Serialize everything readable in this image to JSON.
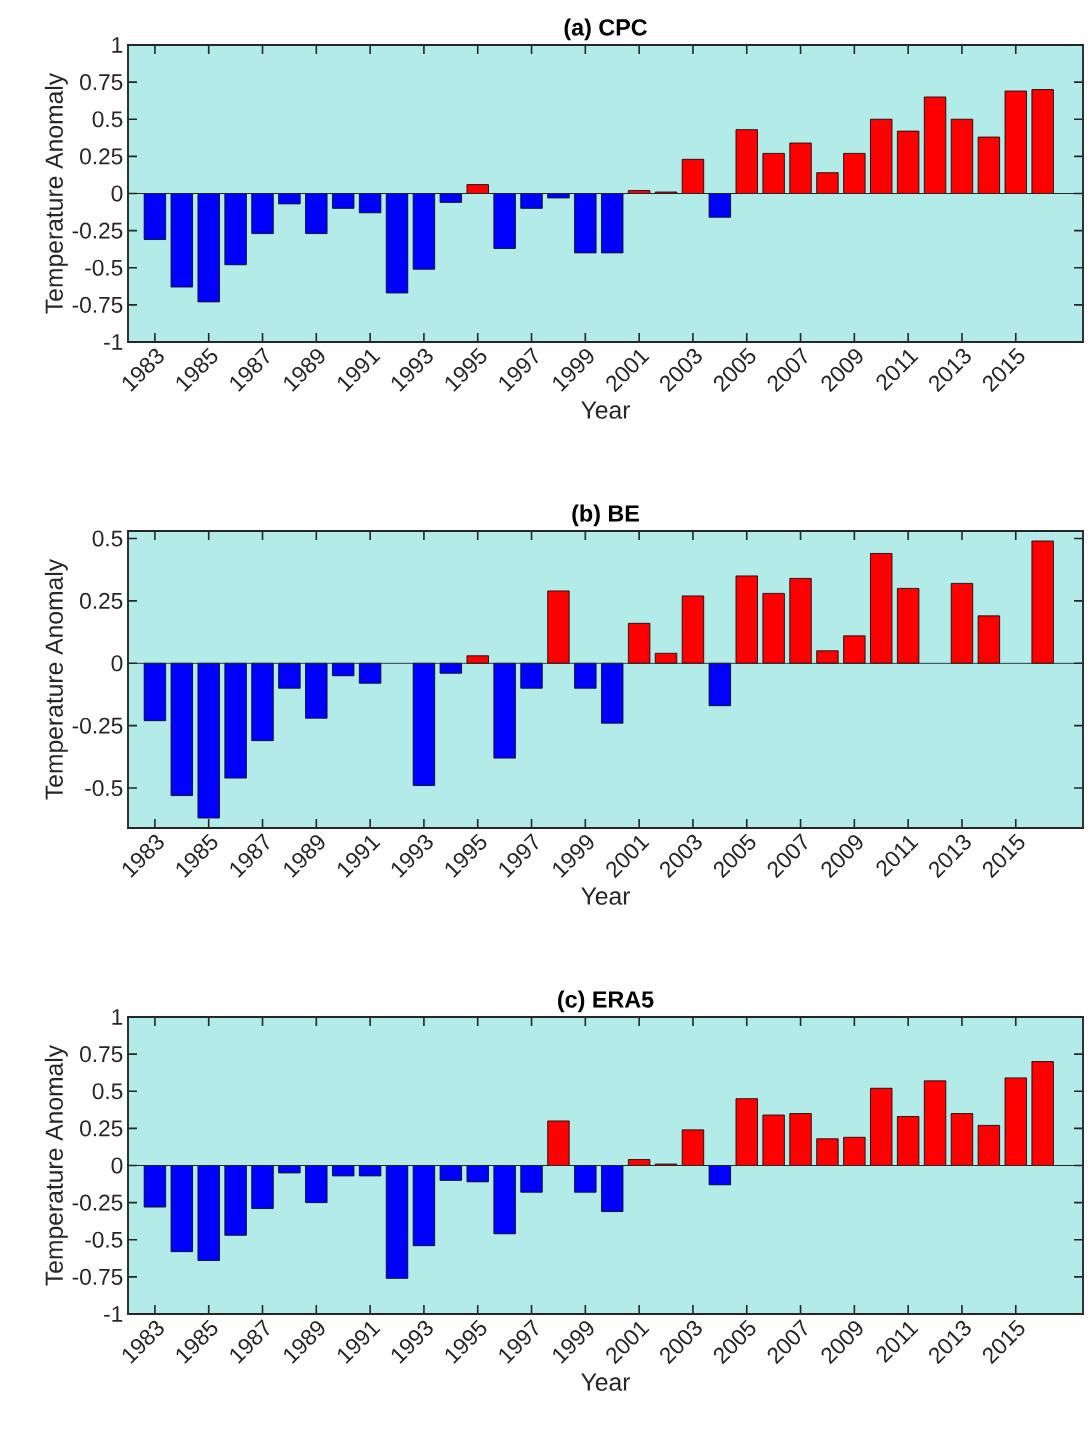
{
  "chart_data": [
    {
      "type": "bar",
      "title": "(a) CPC",
      "xlabel": "Year",
      "ylabel": "Temperature Anomaly",
      "x": [
        1983,
        1984,
        1985,
        1986,
        1987,
        1988,
        1989,
        1990,
        1991,
        1992,
        1993,
        1994,
        1995,
        1996,
        1997,
        1998,
        1999,
        2000,
        2001,
        2002,
        2003,
        2004,
        2005,
        2006,
        2007,
        2008,
        2009,
        2010,
        2011,
        2012,
        2013,
        2014,
        2015,
        2016
      ],
      "values": [
        -0.31,
        -0.63,
        -0.73,
        -0.48,
        -0.27,
        -0.07,
        -0.27,
        -0.1,
        -0.13,
        -0.67,
        -0.51,
        -0.06,
        0.06,
        -0.37,
        -0.1,
        -0.03,
        -0.4,
        -0.4,
        0.02,
        0.01,
        0.23,
        -0.16,
        0.43,
        0.27,
        0.34,
        0.14,
        0.27,
        0.5,
        0.42,
        0.65,
        0.5,
        0.38,
        0.69,
        0.7
      ],
      "colors": [
        "#0000ff",
        "#0000ff",
        "#0000ff",
        "#0000ff",
        "#0000ff",
        "#0000ff",
        "#0000ff",
        "#0000ff",
        "#0000ff",
        "#0000ff",
        "#0000ff",
        "#0000ff",
        "#ff0000",
        "#0000ff",
        "#0000ff",
        "#0000ff",
        "#0000ff",
        "#0000ff",
        "#ff0000",
        "#ff0000",
        "#ff0000",
        "#0000ff",
        "#ff0000",
        "#ff0000",
        "#ff0000",
        "#ff0000",
        "#ff0000",
        "#ff0000",
        "#ff0000",
        "#ff0000",
        "#ff0000",
        "#ff0000",
        "#ff0000",
        "#ff0000"
      ],
      "xlim": [
        1982,
        2017.5
      ],
      "xticks": [
        1983,
        1985,
        1987,
        1989,
        1991,
        1993,
        1995,
        1997,
        1999,
        2001,
        2003,
        2005,
        2007,
        2009,
        2011,
        2013,
        2015
      ],
      "ylim": [
        -1,
        1
      ],
      "yticks": [
        -1,
        -0.75,
        -0.5,
        -0.25,
        0,
        0.25,
        0.5,
        0.75,
        1
      ],
      "ref_lines": [
        {
          "axis": "y",
          "value": 0,
          "color": "#262626"
        }
      ],
      "grid": false
    },
    {
      "type": "bar",
      "title": "(b) BE",
      "xlabel": "Year",
      "ylabel": "Temperature Anomaly",
      "x": [
        1983,
        1984,
        1985,
        1986,
        1987,
        1988,
        1989,
        1990,
        1991,
        1992,
        1993,
        1994,
        1995,
        1996,
        1997,
        1998,
        1999,
        2000,
        2001,
        2002,
        2003,
        2004,
        2005,
        2006,
        2007,
        2008,
        2009,
        2010,
        2011,
        2012,
        2013,
        2014,
        2015,
        2016
      ],
      "values": [
        -0.23,
        -0.53,
        -0.62,
        -0.46,
        -0.31,
        -0.1,
        -0.22,
        -0.05,
        -0.08,
        null,
        -0.49,
        -0.04,
        0.03,
        -0.38,
        -0.1,
        0.29,
        -0.1,
        -0.24,
        0.16,
        0.04,
        0.27,
        -0.17,
        0.35,
        0.28,
        0.34,
        0.05,
        0.11,
        0.44,
        0.3,
        null,
        0.32,
        0.19,
        null,
        0.49
      ],
      "colors": [
        "#0000ff",
        "#0000ff",
        "#0000ff",
        "#0000ff",
        "#0000ff",
        "#0000ff",
        "#0000ff",
        "#0000ff",
        "#0000ff",
        "#0000ff",
        "#0000ff",
        "#0000ff",
        "#ff0000",
        "#0000ff",
        "#0000ff",
        "#ff0000",
        "#0000ff",
        "#0000ff",
        "#ff0000",
        "#ff0000",
        "#ff0000",
        "#0000ff",
        "#ff0000",
        "#ff0000",
        "#ff0000",
        "#ff0000",
        "#ff0000",
        "#ff0000",
        "#ff0000",
        "#ff0000",
        "#ff0000",
        "#ff0000",
        "#ff0000",
        "#ff0000"
      ],
      "xlim": [
        1982,
        2017.5
      ],
      "xticks": [
        1983,
        1985,
        1987,
        1989,
        1991,
        1993,
        1995,
        1997,
        1999,
        2001,
        2003,
        2005,
        2007,
        2009,
        2011,
        2013,
        2015
      ],
      "ylim": [
        -0.66,
        0.53
      ],
      "yticks": [
        -0.5,
        -0.25,
        0,
        0.25,
        0.5
      ],
      "ref_lines": [
        {
          "axis": "y",
          "value": 0,
          "color": "#262626"
        }
      ],
      "grid": false
    },
    {
      "type": "bar",
      "title": "(c) ERA5",
      "xlabel": "Year",
      "ylabel": "Temperature Anomaly",
      "x": [
        1983,
        1984,
        1985,
        1986,
        1987,
        1988,
        1989,
        1990,
        1991,
        1992,
        1993,
        1994,
        1995,
        1996,
        1997,
        1998,
        1999,
        2000,
        2001,
        2002,
        2003,
        2004,
        2005,
        2006,
        2007,
        2008,
        2009,
        2010,
        2011,
        2012,
        2013,
        2014,
        2015,
        2016
      ],
      "values": [
        -0.28,
        -0.58,
        -0.64,
        -0.47,
        -0.29,
        -0.05,
        -0.25,
        -0.07,
        -0.07,
        -0.76,
        -0.54,
        -0.1,
        -0.11,
        -0.46,
        -0.18,
        0.3,
        -0.18,
        -0.31,
        0.04,
        0.01,
        0.24,
        -0.13,
        0.45,
        0.34,
        0.35,
        0.18,
        0.19,
        0.52,
        0.33,
        0.57,
        0.35,
        0.27,
        0.59,
        0.7
      ],
      "colors": [
        "#0000ff",
        "#0000ff",
        "#0000ff",
        "#0000ff",
        "#0000ff",
        "#0000ff",
        "#0000ff",
        "#0000ff",
        "#0000ff",
        "#0000ff",
        "#0000ff",
        "#0000ff",
        "#0000ff",
        "#0000ff",
        "#0000ff",
        "#ff0000",
        "#0000ff",
        "#0000ff",
        "#ff0000",
        "#ff0000",
        "#ff0000",
        "#0000ff",
        "#ff0000",
        "#ff0000",
        "#ff0000",
        "#ff0000",
        "#ff0000",
        "#ff0000",
        "#ff0000",
        "#ff0000",
        "#ff0000",
        "#ff0000",
        "#ff0000",
        "#ff0000"
      ],
      "xlim": [
        1982,
        2017.5
      ],
      "xticks": [
        1983,
        1985,
        1987,
        1989,
        1991,
        1993,
        1995,
        1997,
        1999,
        2001,
        2003,
        2005,
        2007,
        2009,
        2011,
        2013,
        2015
      ],
      "ylim": [
        -1,
        1
      ],
      "yticks": [
        -1,
        -0.75,
        -0.5,
        -0.25,
        0,
        0.25,
        0.5,
        0.75,
        1
      ],
      "ref_lines": [
        {
          "axis": "y",
          "value": 0,
          "color": "#262626"
        }
      ],
      "grid": false
    }
  ]
}
